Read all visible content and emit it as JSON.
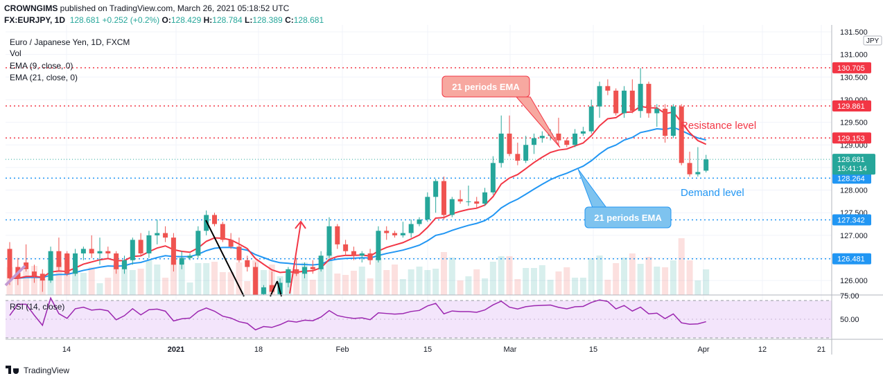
{
  "header": {
    "publisher": "CROWNGIMS",
    "published_line": "published on TradingView.com, March 26, 2021 05:18:52 UTC",
    "symbol": "FX:EURJPY, 1D",
    "last": "128.681",
    "change": "+0.252 (+0.2%)",
    "o_label": "O:",
    "o": "128.429",
    "h_label": "H:",
    "h": "128.784",
    "l_label": "L:",
    "l": "128.389",
    "c_label": "C:",
    "c": "128.681"
  },
  "legend": {
    "title": "Euro / Japanese Yen, 1D, FXCM",
    "vol": "Vol",
    "ema9": "EMA (9, close, 0)",
    "ema21": "EMA (21, close, 0)",
    "rsi": "RSI (14, close)"
  },
  "currency_badge": "JPY",
  "annotations": {
    "ema21_top": "21 periods EMA",
    "ema21_bottom": "21 periods EMA",
    "resistance": "Resistance level",
    "demand": "Demand level"
  },
  "price_axis": [
    "131.500",
    "131.000",
    "130.500",
    "130.000",
    "129.500",
    "129.000",
    "128.500",
    "128.000",
    "127.500",
    "127.000",
    "126.500",
    "126.000"
  ],
  "rsi_axis": [
    "75.00",
    "50.00"
  ],
  "time_axis": [
    "14",
    "2021",
    "18",
    "Feb",
    "15",
    "Mar",
    "15",
    "Apr",
    "12",
    "21"
  ],
  "level_badges": [
    {
      "value": "130.705",
      "color": "#f23645"
    },
    {
      "value": "129.861",
      "color": "#f23645"
    },
    {
      "value": "129.153",
      "color": "#f23645"
    },
    {
      "value": "128.264",
      "color": "#2196f3"
    },
    {
      "value": "127.342",
      "color": "#2196f3"
    },
    {
      "value": "126.481",
      "color": "#2196f3"
    }
  ],
  "last_price_badge": {
    "value": "128.681",
    "countdown": "15:41:14",
    "color": "#26a69a"
  },
  "footer": {
    "brand": "TradingView"
  },
  "colors": {
    "up": "#26a69a",
    "down": "#ef5350",
    "ema9": "#f23645",
    "ema21": "#2196f3",
    "rsi": "#9c27b0",
    "resistance": "#f23645",
    "support": "#2196f3"
  },
  "chart_data": {
    "type": "candlestick",
    "title": "Euro / Japanese Yen, 1D, FXCM",
    "ylim": [
      125.6,
      131.6
    ],
    "horizontal_levels": {
      "resistance": [
        130.705,
        129.861,
        129.153
      ],
      "support": [
        128.264,
        127.342,
        126.481
      ]
    },
    "candles": [
      {
        "o": 126.7,
        "h": 126.85,
        "l": 125.9,
        "c": 126.05
      },
      {
        "o": 126.3,
        "h": 126.5,
        "l": 125.9,
        "c": 126.05
      },
      {
        "o": 126.4,
        "h": 126.8,
        "l": 126.2,
        "c": 126.25
      },
      {
        "o": 126.2,
        "h": 126.35,
        "l": 125.95,
        "c": 126.1
      },
      {
        "o": 126.15,
        "h": 126.25,
        "l": 125.75,
        "c": 126.0
      },
      {
        "o": 126.0,
        "h": 126.75,
        "l": 125.95,
        "c": 126.65
      },
      {
        "o": 126.65,
        "h": 126.95,
        "l": 126.2,
        "c": 126.3
      },
      {
        "o": 126.6,
        "h": 126.65,
        "l": 126.1,
        "c": 126.15
      },
      {
        "o": 126.15,
        "h": 126.7,
        "l": 126.1,
        "c": 126.6
      },
      {
        "o": 126.6,
        "h": 126.75,
        "l": 126.45,
        "c": 126.7
      },
      {
        "o": 126.7,
        "h": 127.0,
        "l": 126.5,
        "c": 126.6
      },
      {
        "o": 126.6,
        "h": 126.95,
        "l": 126.35,
        "c": 126.65
      },
      {
        "o": 126.65,
        "h": 126.75,
        "l": 126.5,
        "c": 126.6
      },
      {
        "o": 126.6,
        "h": 126.65,
        "l": 126.15,
        "c": 126.25
      },
      {
        "o": 126.25,
        "h": 126.55,
        "l": 126.15,
        "c": 126.45
      },
      {
        "o": 126.45,
        "h": 126.95,
        "l": 126.35,
        "c": 126.9
      },
      {
        "o": 126.9,
        "h": 127.05,
        "l": 126.55,
        "c": 126.6
      },
      {
        "o": 126.6,
        "h": 127.1,
        "l": 126.5,
        "c": 127.0
      },
      {
        "o": 127.0,
        "h": 127.35,
        "l": 126.8,
        "c": 127.05
      },
      {
        "o": 127.05,
        "h": 127.2,
        "l": 126.85,
        "c": 126.95
      },
      {
        "o": 126.95,
        "h": 127.05,
        "l": 126.2,
        "c": 126.35
      },
      {
        "o": 126.35,
        "h": 126.65,
        "l": 126.25,
        "c": 126.5
      },
      {
        "o": 126.5,
        "h": 126.6,
        "l": 126.45,
        "c": 126.55
      },
      {
        "o": 126.55,
        "h": 127.2,
        "l": 126.5,
        "c": 127.1
      },
      {
        "o": 127.1,
        "h": 127.55,
        "l": 127.0,
        "c": 127.45
      },
      {
        "o": 127.45,
        "h": 127.5,
        "l": 127.2,
        "c": 127.25
      },
      {
        "o": 127.25,
        "h": 127.3,
        "l": 126.85,
        "c": 126.9
      },
      {
        "o": 126.9,
        "h": 127.05,
        "l": 126.7,
        "c": 126.75
      },
      {
        "o": 126.75,
        "h": 126.95,
        "l": 126.4,
        "c": 126.45
      },
      {
        "o": 126.45,
        "h": 126.55,
        "l": 126.2,
        "c": 126.3
      },
      {
        "o": 126.3,
        "h": 126.4,
        "l": 125.5,
        "c": 125.6
      },
      {
        "o": 125.7,
        "h": 125.9,
        "l": 125.6,
        "c": 125.85
      },
      {
        "o": 125.9,
        "h": 126.2,
        "l": 125.7,
        "c": 125.75
      },
      {
        "o": 125.7,
        "h": 126.05,
        "l": 125.6,
        "c": 125.95
      },
      {
        "o": 125.95,
        "h": 126.3,
        "l": 125.85,
        "c": 126.25
      },
      {
        "o": 126.25,
        "h": 126.5,
        "l": 126.1,
        "c": 126.15
      },
      {
        "o": 126.15,
        "h": 126.4,
        "l": 126.05,
        "c": 126.3
      },
      {
        "o": 126.3,
        "h": 126.45,
        "l": 126.15,
        "c": 126.25
      },
      {
        "o": 126.25,
        "h": 126.65,
        "l": 126.2,
        "c": 126.55
      },
      {
        "o": 126.55,
        "h": 127.4,
        "l": 126.5,
        "c": 127.2
      },
      {
        "o": 127.2,
        "h": 127.25,
        "l": 126.7,
        "c": 126.8
      },
      {
        "o": 126.8,
        "h": 126.9,
        "l": 126.55,
        "c": 126.65
      },
      {
        "o": 126.65,
        "h": 126.75,
        "l": 126.45,
        "c": 126.55
      },
      {
        "o": 126.55,
        "h": 126.65,
        "l": 126.4,
        "c": 126.6
      },
      {
        "o": 126.6,
        "h": 126.7,
        "l": 126.35,
        "c": 126.45
      },
      {
        "o": 126.45,
        "h": 127.2,
        "l": 126.4,
        "c": 127.1
      },
      {
        "o": 127.1,
        "h": 127.2,
        "l": 126.9,
        "c": 127.05
      },
      {
        "o": 127.05,
        "h": 127.1,
        "l": 126.95,
        "c": 127.0
      },
      {
        "o": 127.0,
        "h": 127.3,
        "l": 126.95,
        "c": 127.05
      },
      {
        "o": 127.05,
        "h": 127.35,
        "l": 126.95,
        "c": 127.25
      },
      {
        "o": 127.25,
        "h": 127.4,
        "l": 127.2,
        "c": 127.35
      },
      {
        "o": 127.35,
        "h": 127.95,
        "l": 127.3,
        "c": 127.85
      },
      {
        "o": 127.85,
        "h": 128.25,
        "l": 127.5,
        "c": 128.2
      },
      {
        "o": 128.2,
        "h": 128.3,
        "l": 127.35,
        "c": 127.45
      },
      {
        "o": 127.45,
        "h": 127.85,
        "l": 127.4,
        "c": 127.8
      },
      {
        "o": 127.8,
        "h": 128.0,
        "l": 127.7,
        "c": 127.75
      },
      {
        "o": 127.75,
        "h": 128.1,
        "l": 127.65,
        "c": 127.75
      },
      {
        "o": 127.75,
        "h": 127.85,
        "l": 127.6,
        "c": 127.7
      },
      {
        "o": 127.7,
        "h": 128.05,
        "l": 127.65,
        "c": 127.95
      },
      {
        "o": 127.95,
        "h": 128.75,
        "l": 127.9,
        "c": 128.6
      },
      {
        "o": 128.6,
        "h": 129.65,
        "l": 128.5,
        "c": 129.25
      },
      {
        "o": 129.25,
        "h": 129.65,
        "l": 128.75,
        "c": 128.8
      },
      {
        "o": 128.8,
        "h": 129.05,
        "l": 128.55,
        "c": 128.65
      },
      {
        "o": 128.65,
        "h": 129.2,
        "l": 128.6,
        "c": 129.0
      },
      {
        "o": 129.0,
        "h": 129.25,
        "l": 128.8,
        "c": 129.15
      },
      {
        "o": 129.15,
        "h": 129.3,
        "l": 129.05,
        "c": 129.2
      },
      {
        "o": 129.2,
        "h": 129.35,
        "l": 129.1,
        "c": 129.25
      },
      {
        "o": 129.25,
        "h": 129.6,
        "l": 129.0,
        "c": 129.1
      },
      {
        "o": 129.1,
        "h": 129.15,
        "l": 128.95,
        "c": 129.0
      },
      {
        "o": 129.0,
        "h": 129.35,
        "l": 128.95,
        "c": 129.25
      },
      {
        "o": 129.25,
        "h": 129.4,
        "l": 129.2,
        "c": 129.3
      },
      {
        "o": 129.3,
        "h": 130.0,
        "l": 129.25,
        "c": 129.85
      },
      {
        "o": 129.85,
        "h": 130.4,
        "l": 129.6,
        "c": 130.3
      },
      {
        "o": 130.3,
        "h": 130.45,
        "l": 130.1,
        "c": 130.2
      },
      {
        "o": 130.2,
        "h": 130.25,
        "l": 129.65,
        "c": 129.7
      },
      {
        "o": 129.7,
        "h": 130.3,
        "l": 129.6,
        "c": 130.2
      },
      {
        "o": 130.2,
        "h": 130.45,
        "l": 129.7,
        "c": 129.75
      },
      {
        "o": 129.75,
        "h": 130.7,
        "l": 129.6,
        "c": 130.35
      },
      {
        "o": 130.35,
        "h": 130.4,
        "l": 129.6,
        "c": 129.7
      },
      {
        "o": 129.7,
        "h": 129.9,
        "l": 129.4,
        "c": 129.8
      },
      {
        "o": 129.8,
        "h": 129.9,
        "l": 129.05,
        "c": 129.2
      },
      {
        "o": 129.2,
        "h": 129.9,
        "l": 129.15,
        "c": 129.85
      },
      {
        "o": 129.85,
        "h": 129.9,
        "l": 128.55,
        "c": 128.6
      },
      {
        "o": 128.6,
        "h": 128.85,
        "l": 128.3,
        "c": 128.35
      },
      {
        "o": 128.35,
        "h": 128.95,
        "l": 128.3,
        "c": 128.4
      },
      {
        "o": 128.43,
        "h": 128.78,
        "l": 128.39,
        "c": 128.68
      }
    ]
  }
}
